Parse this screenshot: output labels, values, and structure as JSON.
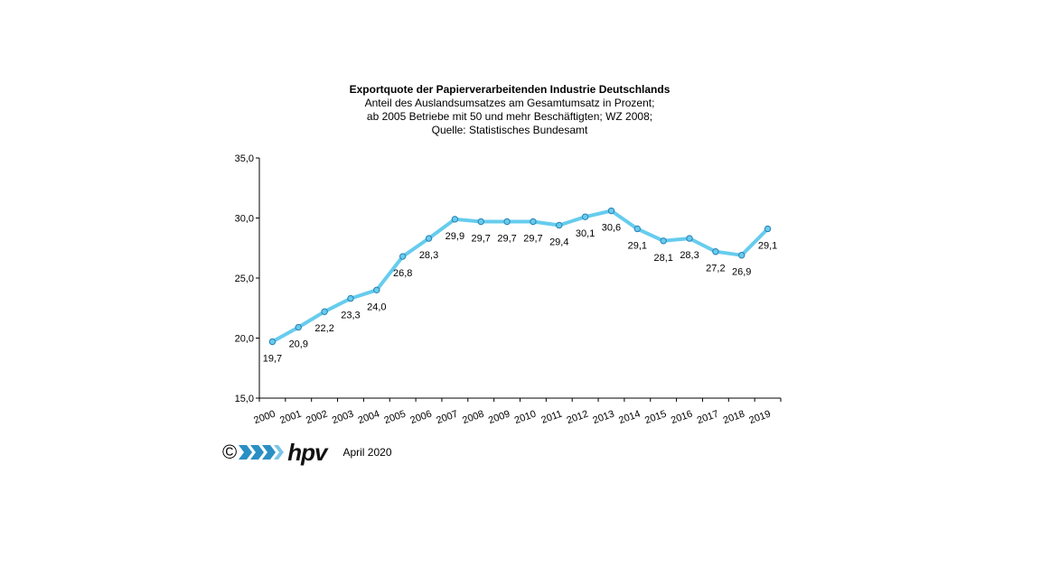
{
  "chart_data": {
    "type": "line",
    "title": "Exportquote der Papierverarbeitenden Industrie Deutschlands",
    "subtitle": [
      "Anteil des Auslandsumsatzes am Gesamtumsatz in Prozent;",
      "ab 2005 Betriebe mit 50 und mehr Beschäftigten; WZ 2008;",
      "Quelle: Statistisches Bundesamt"
    ],
    "categories": [
      "2000",
      "2001",
      "2002",
      "2003",
      "2004",
      "2005",
      "2006",
      "2007",
      "2008",
      "2009",
      "2010",
      "2011",
      "2012",
      "2013",
      "2014",
      "2015",
      "2016",
      "2017",
      "2018",
      "2019"
    ],
    "values": [
      19.7,
      20.9,
      22.2,
      23.3,
      24.0,
      26.8,
      28.3,
      29.9,
      29.7,
      29.7,
      29.7,
      29.4,
      30.1,
      30.6,
      29.1,
      28.1,
      28.3,
      27.2,
      26.9,
      29.1
    ],
    "value_labels": [
      "19,7",
      "20,9",
      "22,2",
      "23,3",
      "24,0",
      "26,8",
      "28,3",
      "29,9",
      "29,7",
      "29,7",
      "29,7",
      "29,4",
      "30,1",
      "30,6",
      "29,1",
      "28,1",
      "28,3",
      "27,2",
      "26,9",
      "29,1"
    ],
    "ylim": [
      15,
      35
    ],
    "yticks": [
      15,
      20,
      25,
      30,
      35
    ],
    "ytick_labels": [
      "15,0",
      "20,0",
      "25,0",
      "30,0",
      "35,0"
    ],
    "grid": false,
    "line_color": "#66ccee",
    "marker_color": "#66ccee"
  },
  "footer": {
    "copyright": "©",
    "logo_text": "hpv",
    "date": "April 2020"
  }
}
